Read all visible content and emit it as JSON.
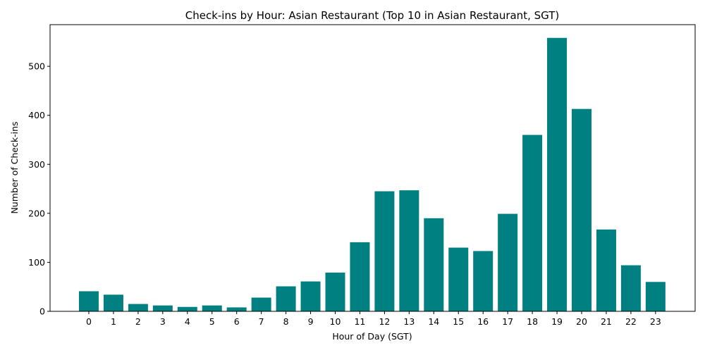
{
  "chart_data": {
    "type": "bar",
    "title": "Check-ins by Hour: Asian Restaurant (Top 10 in Asian Restaurant, SGT)",
    "xlabel": "Hour of Day (SGT)",
    "ylabel": "Number of Check-ins",
    "categories": [
      "0",
      "1",
      "2",
      "3",
      "4",
      "5",
      "6",
      "7",
      "8",
      "9",
      "10",
      "11",
      "12",
      "13",
      "14",
      "15",
      "16",
      "17",
      "18",
      "19",
      "20",
      "21",
      "22",
      "23"
    ],
    "values": [
      41,
      34,
      15,
      12,
      9,
      12,
      8,
      28,
      51,
      61,
      79,
      141,
      245,
      247,
      190,
      130,
      123,
      199,
      360,
      558,
      413,
      167,
      94,
      60
    ],
    "ylim": [
      0,
      585
    ],
    "yticks": [
      "0",
      "100",
      "200",
      "300",
      "400",
      "500"
    ],
    "bar_color": "#008080",
    "grid": false,
    "legend": "none"
  }
}
